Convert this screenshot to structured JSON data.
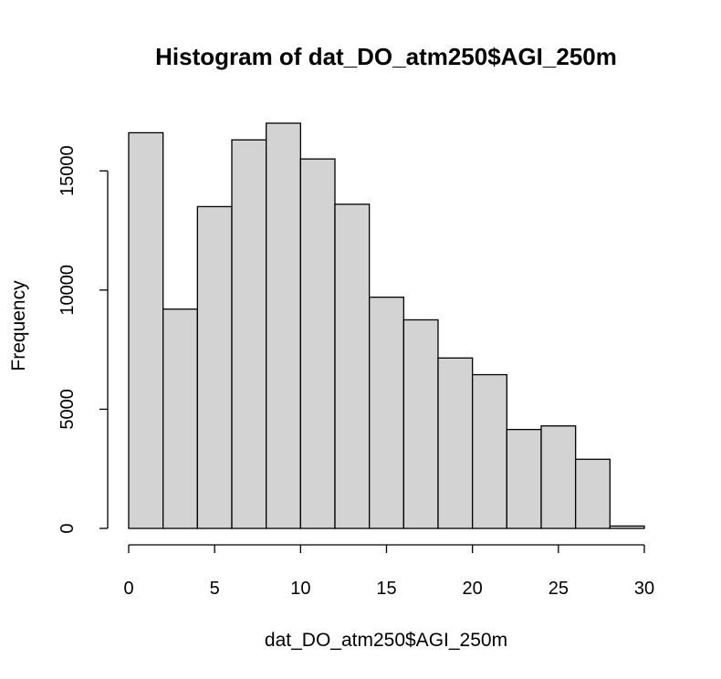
{
  "chart_data": {
    "type": "bar",
    "title": "Histogram of dat_DO_atm250$AGI_250m",
    "xlabel": "dat_DO_atm250$AGI_250m",
    "ylabel": "Frequency",
    "bin_edges": [
      0,
      2,
      4,
      6,
      8,
      10,
      12,
      14,
      16,
      18,
      20,
      22,
      24,
      26,
      28,
      30
    ],
    "values": [
      16600,
      9200,
      13500,
      16300,
      17000,
      15500,
      13600,
      9700,
      8750,
      7150,
      6450,
      4150,
      4300,
      2900,
      100
    ],
    "xlim": [
      0,
      30
    ],
    "ylim": [
      0,
      17000
    ],
    "x_ticks": [
      0,
      5,
      10,
      15,
      20,
      25,
      30
    ],
    "y_ticks": [
      0,
      5000,
      10000,
      15000
    ],
    "bar_color": "#d3d3d3",
    "edge_color": "#000000",
    "grid": false
  }
}
